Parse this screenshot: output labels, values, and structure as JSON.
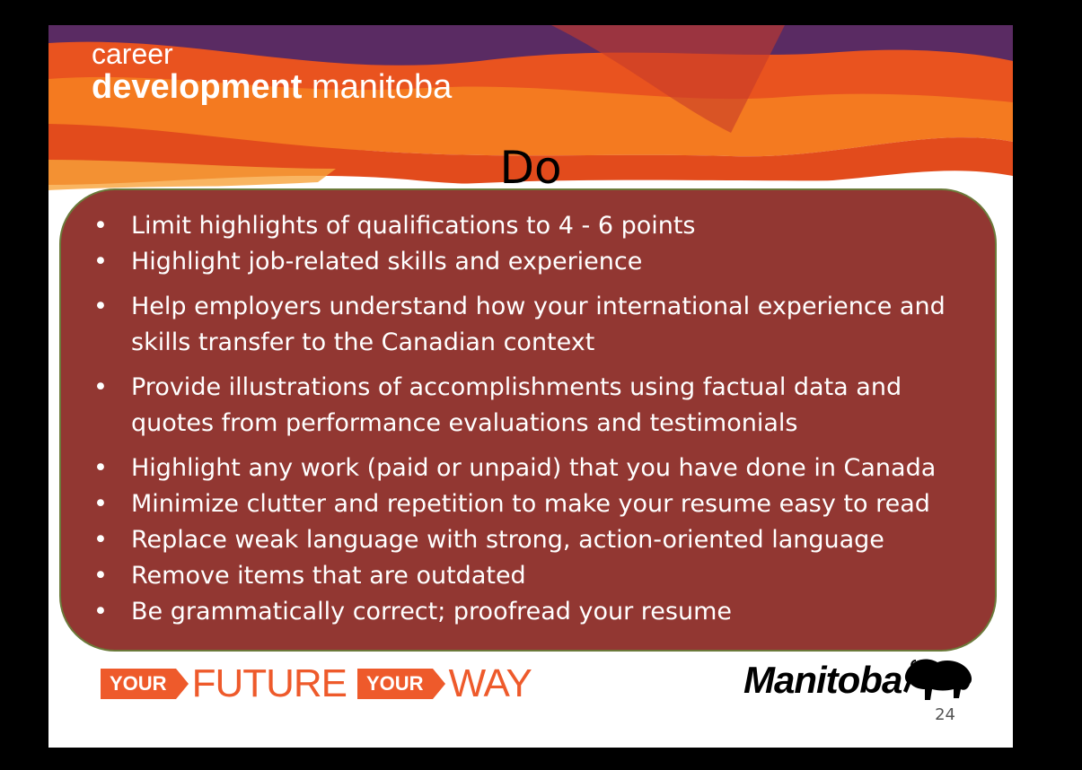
{
  "header": {
    "brand_line1": "career",
    "brand_line2_bold": "development",
    "brand_line2_light": " manitoba"
  },
  "title": "Do",
  "bullets": [
    "Limit highlights of qualifications to 4 - 6 points",
    "Highlight job-related skills and experience",
    "Help employers understand how your international experience and skills transfer to the Canadian context",
    "Provide illustrations of accomplishments using factual data and quotes from performance evaluations and testimonials",
    "Highlight any work (paid or unpaid) that you have done in Canada",
    "Minimize clutter and repetition to make your resume easy to read",
    "Replace weak language with strong, action-oriented language",
    "Remove items that are outdated",
    "Be grammatically correct; proofread your resume"
  ],
  "footer": {
    "your_label_1": "YOUR",
    "future_word": "FUTURE",
    "your_label_2": "YOUR",
    "way_word": "WAY",
    "manitoba_logo": "Manitoba",
    "page_number": "24"
  },
  "colors": {
    "panel_fill": "#923732",
    "panel_border": "#6b7a3a",
    "brand_orange": "#ee5a2b",
    "banner_purple": "#5a2b63"
  }
}
